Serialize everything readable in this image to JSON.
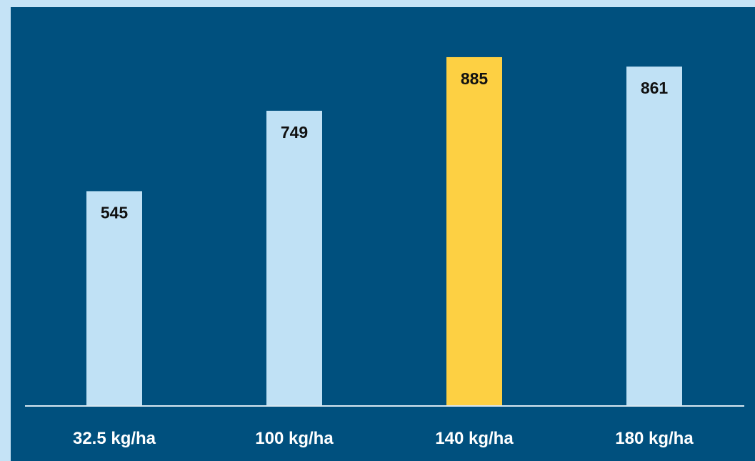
{
  "chart_data": {
    "type": "bar",
    "categories": [
      "32.5 kg/ha",
      "100 kg/ha",
      "140 kg/ha",
      "180 kg/ha"
    ],
    "values": [
      545,
      749,
      885,
      861
    ],
    "value_labels": [
      "545",
      "749",
      "885",
      "861"
    ],
    "title": "",
    "xlabel": "",
    "ylabel": "",
    "ylim": [
      0,
      1030
    ],
    "grid": false,
    "highlight_index": 2,
    "colors": {
      "background": "#00507e",
      "frame": "#c5e3f6",
      "bar": "#c0e1f5",
      "highlight_bar": "#fdd043",
      "baseline": "#d8e8f2",
      "category_text": "#ffffff",
      "value_text": "#111111"
    }
  }
}
